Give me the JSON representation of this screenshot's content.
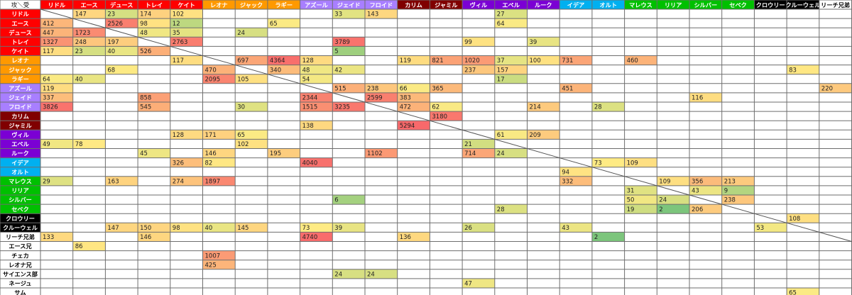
{
  "chart_data": {
    "type": "table",
    "corner_label": "攻＼受",
    "columns": [
      {
        "name": "リドル",
        "bg": "#ff0000",
        "fg": "#ffffff"
      },
      {
        "name": "エース",
        "bg": "#ff0000",
        "fg": "#ffffff"
      },
      {
        "name": "デュース",
        "bg": "#ff0000",
        "fg": "#ffffff"
      },
      {
        "name": "トレイ",
        "bg": "#ff0000",
        "fg": "#ffffff"
      },
      {
        "name": "ケイト",
        "bg": "#ff0000",
        "fg": "#ffffff"
      },
      {
        "name": "レオナ",
        "bg": "#ff9900",
        "fg": "#ffffff"
      },
      {
        "name": "ジャック",
        "bg": "#ff9900",
        "fg": "#ffffff"
      },
      {
        "name": "ラギー",
        "bg": "#ff9900",
        "fg": "#ffffff"
      },
      {
        "name": "アズール",
        "bg": "#a87fff",
        "fg": "#ffffff"
      },
      {
        "name": "ジェイド",
        "bg": "#a87fff",
        "fg": "#ffffff"
      },
      {
        "name": "フロイド",
        "bg": "#a87fff",
        "fg": "#ffffff"
      },
      {
        "name": "カリム",
        "bg": "#800000",
        "fg": "#ffffff"
      },
      {
        "name": "ジャミル",
        "bg": "#800000",
        "fg": "#ffffff"
      },
      {
        "name": "ヴィル",
        "bg": "#7b00d4",
        "fg": "#ffffff"
      },
      {
        "name": "エペル",
        "bg": "#7b00d4",
        "fg": "#ffffff"
      },
      {
        "name": "ルーク",
        "bg": "#7b00d4",
        "fg": "#ffffff"
      },
      {
        "name": "イデア",
        "bg": "#00b0f0",
        "fg": "#ffffff"
      },
      {
        "name": "オルト",
        "bg": "#00b0f0",
        "fg": "#ffffff"
      },
      {
        "name": "マレウス",
        "bg": "#00c000",
        "fg": "#ffffff"
      },
      {
        "name": "リリア",
        "bg": "#00c000",
        "fg": "#ffffff"
      },
      {
        "name": "シルバー",
        "bg": "#00c000",
        "fg": "#ffffff"
      },
      {
        "name": "セベク",
        "bg": "#00c000",
        "fg": "#ffffff"
      },
      {
        "name": "クロウリー",
        "bg": "#000000",
        "fg": "#ffffff"
      },
      {
        "name": "クルーウェル",
        "bg": "#000000",
        "fg": "#ffffff"
      },
      {
        "name": "リーチ兄弟",
        "bg": "#ffffff",
        "fg": "#000000"
      }
    ],
    "rows": [
      {
        "name": "リドル",
        "bg": "#ff0000",
        "fg": "#ffffff",
        "values": {
          "1": 147,
          "2": 23,
          "3": 174,
          "4": 102,
          "9": 33,
          "10": 143,
          "14": 27
        }
      },
      {
        "name": "エース",
        "bg": "#ff0000",
        "fg": "#ffffff",
        "values": {
          "0": 412,
          "2": 2526,
          "3": 98,
          "4": 12,
          "7": 65,
          "14": 64
        }
      },
      {
        "name": "デュース",
        "bg": "#ff0000",
        "fg": "#ffffff",
        "values": {
          "0": 447,
          "1": 1723,
          "3": 48,
          "4": 35,
          "6": 24
        }
      },
      {
        "name": "トレイ",
        "bg": "#ff0000",
        "fg": "#ffffff",
        "values": {
          "0": 1327,
          "1": 248,
          "2": 197,
          "4": 2763,
          "9": 3789,
          "13": 99,
          "15": 39
        }
      },
      {
        "name": "ケイト",
        "bg": "#ff0000",
        "fg": "#ffffff",
        "values": {
          "0": 117,
          "1": 23,
          "2": 40,
          "3": 526,
          "9": 5
        }
      },
      {
        "name": "レオナ",
        "bg": "#ff9900",
        "fg": "#ffffff",
        "values": {
          "4": 117,
          "6": 697,
          "7": 4364,
          "8": 128,
          "11": 119,
          "12": 821,
          "13": 1020,
          "14": 37,
          "15": 100,
          "16": 731,
          "18": 460
        }
      },
      {
        "name": "ジャック",
        "bg": "#ff9900",
        "fg": "#ffffff",
        "values": {
          "2": 68,
          "5": 470,
          "7": 340,
          "8": 48,
          "9": 42,
          "13": 237,
          "14": 157,
          "23": 83
        }
      },
      {
        "name": "ラギー",
        "bg": "#ff9900",
        "fg": "#ffffff",
        "values": {
          "0": 64,
          "1": 40,
          "5": 2095,
          "6": 105,
          "8": 54,
          "14": 17
        }
      },
      {
        "name": "アズール",
        "bg": "#a87fff",
        "fg": "#ffffff",
        "values": {
          "0": 119,
          "9": 515,
          "10": 238,
          "11": 66,
          "12": 365,
          "16": 451,
          "24": 220
        }
      },
      {
        "name": "ジェイド",
        "bg": "#a87fff",
        "fg": "#ffffff",
        "values": {
          "0": 337,
          "3": 858,
          "8": 2344,
          "10": 2599,
          "11": 383,
          "20": 116
        }
      },
      {
        "name": "フロイド",
        "bg": "#a87fff",
        "fg": "#ffffff",
        "values": {
          "0": 3826,
          "3": 545,
          "6": 30,
          "8": 1515,
          "9": 3235,
          "11": 472,
          "12": 62,
          "15": 214,
          "17": 28
        }
      },
      {
        "name": "カリム",
        "bg": "#800000",
        "fg": "#ffffff",
        "values": {
          "12": 3180
        }
      },
      {
        "name": "ジャミル",
        "bg": "#800000",
        "fg": "#ffffff",
        "values": {
          "8": 138,
          "11": 5294
        }
      },
      {
        "name": "ヴィル",
        "bg": "#7b00d4",
        "fg": "#ffffff",
        "values": {
          "4": 128,
          "5": 171,
          "6": 65,
          "14": 61,
          "15": 209
        }
      },
      {
        "name": "エペル",
        "bg": "#7b00d4",
        "fg": "#ffffff",
        "values": {
          "0": 49,
          "1": 78,
          "6": 102,
          "13": 21
        }
      },
      {
        "name": "ルーク",
        "bg": "#7b00d4",
        "fg": "#ffffff",
        "values": {
          "3": 45,
          "5": 146,
          "7": 195,
          "10": 1102,
          "13": 714,
          "14": 24
        }
      },
      {
        "name": "イデア",
        "bg": "#00b0f0",
        "fg": "#ffffff",
        "values": {
          "4": 326,
          "5": 82,
          "8": 4040,
          "17": 73,
          "18": 109
        }
      },
      {
        "name": "オルト",
        "bg": "#00b0f0",
        "fg": "#ffffff",
        "values": {
          "16": 94
        }
      },
      {
        "name": "マレウス",
        "bg": "#00c000",
        "fg": "#ffffff",
        "values": {
          "0": 29,
          "2": 163,
          "4": 274,
          "5": 1897,
          "16": 332,
          "19": 109,
          "20": 356,
          "21": 213
        }
      },
      {
        "name": "リリア",
        "bg": "#00c000",
        "fg": "#ffffff",
        "values": {
          "18": 31,
          "20": 43,
          "21": 9
        }
      },
      {
        "name": "シルバー",
        "bg": "#00c000",
        "fg": "#ffffff",
        "values": {
          "9": 6,
          "18": 50,
          "19": 24,
          "21": 238
        }
      },
      {
        "name": "セベク",
        "bg": "#00c000",
        "fg": "#ffffff",
        "values": {
          "14": 28,
          "18": 19,
          "19": 2,
          "20": 206
        }
      },
      {
        "name": "クロウリー",
        "bg": "#000000",
        "fg": "#ffffff",
        "values": {
          "23": 108
        }
      },
      {
        "name": "クルーウェル",
        "bg": "#000000",
        "fg": "#ffffff",
        "values": {
          "2": 147,
          "3": 150,
          "4": 98,
          "5": 40,
          "6": 145,
          "8": 73,
          "9": 39,
          "13": 26,
          "16": 43,
          "22": 53
        }
      },
      {
        "name": "リーチ兄弟",
        "bg": "#ffffff",
        "fg": "#000000",
        "values": {
          "0": 133,
          "3": 146,
          "8": 4740,
          "11": 136,
          "17": 2
        }
      },
      {
        "name": "エース兄",
        "bg": "#ffffff",
        "fg": "#000000",
        "values": {
          "1": 86
        }
      },
      {
        "name": "チェカ",
        "bg": "#ffffff",
        "fg": "#000000",
        "values": {
          "5": 1007
        }
      },
      {
        "name": "レオナ兄",
        "bg": "#ffffff",
        "fg": "#000000",
        "values": {
          "5": 425
        }
      },
      {
        "name": "サイエンス部",
        "bg": "#ffffff",
        "fg": "#000000",
        "values": {
          "9": 24,
          "10": 24
        }
      },
      {
        "name": "ネージュ",
        "bg": "#ffffff",
        "fg": "#000000",
        "values": {
          "13": 47
        }
      },
      {
        "name": "サム",
        "bg": "#ffffff",
        "fg": "#000000",
        "values": {
          "23": 65
        }
      }
    ],
    "color_scale": {
      "low": "#63be7b",
      "mid": "#ffeb84",
      "high": "#f8696b"
    },
    "diagonal_line": true,
    "grid": true,
    "legend": "none"
  }
}
